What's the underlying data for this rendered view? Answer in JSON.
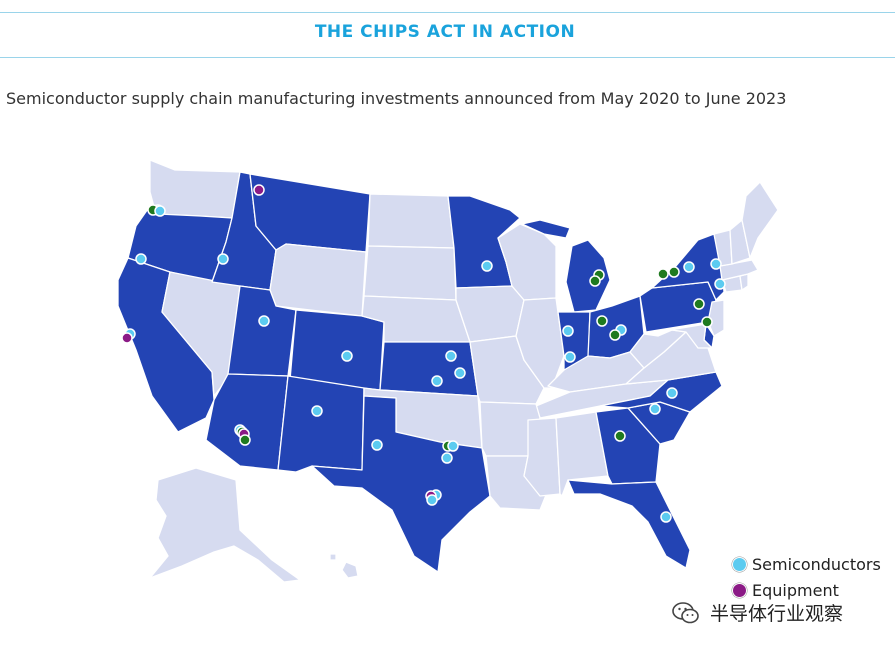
{
  "header": {
    "banner_title": "THE CHIPS ACT IN ACTION"
  },
  "subtitle": "Semiconductor supply chain manufacturing investments announced from May 2020 to June 2023",
  "colors": {
    "active_state": "#2344b4",
    "inactive_state": "#d6dbf0",
    "border": "#ffffff",
    "semiconductors": "#5ccbf0",
    "equipment": "#8b1a86",
    "materials": "#1f7a1f"
  },
  "legend": {
    "items": [
      {
        "label": "Semiconductors",
        "color": "#5ccbf0"
      },
      {
        "label": "Equipment",
        "color": "#8b1a86"
      }
    ]
  },
  "watermark": {
    "text": "半导体行业观察",
    "icon": "wechat-icon"
  }
}
